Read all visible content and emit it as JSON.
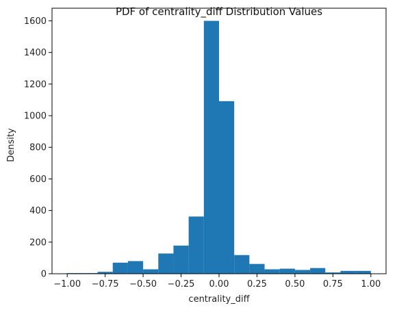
{
  "chart_data": {
    "type": "bar",
    "title": "PDF of centrality_diff Distribution Values",
    "xlabel": "centrality_diff",
    "ylabel": "Density",
    "xlim": [
      -1.1,
      1.1
    ],
    "ylim": [
      0,
      1680
    ],
    "x_ticks": [
      -1.0,
      -0.75,
      -0.5,
      -0.25,
      0.0,
      0.25,
      0.5,
      0.75,
      1.0
    ],
    "x_tick_labels": [
      "−1.00",
      "−0.75",
      "−0.50",
      "−0.25",
      "0.00",
      "0.25",
      "0.50",
      "0.75",
      "1.00"
    ],
    "y_ticks": [
      0,
      200,
      400,
      600,
      800,
      1000,
      1200,
      1400,
      1600
    ],
    "y_tick_labels": [
      "0",
      "200",
      "400",
      "600",
      "800",
      "1000",
      "1200",
      "1400",
      "1600"
    ],
    "bin_edges": [
      -1.0,
      -0.9,
      -0.8,
      -0.7,
      -0.6,
      -0.5,
      -0.4,
      -0.3,
      -0.2,
      -0.1,
      0.0,
      0.1,
      0.2,
      0.3,
      0.4,
      0.5,
      0.6,
      0.7,
      0.8,
      0.9,
      1.0
    ],
    "values": [
      4,
      4,
      12,
      70,
      80,
      28,
      128,
      178,
      362,
      1600,
      1092,
      118,
      62,
      28,
      32,
      24,
      36,
      8,
      18,
      18
    ],
    "bar_color": "#1f77b4",
    "grid": false,
    "legend": "none"
  }
}
